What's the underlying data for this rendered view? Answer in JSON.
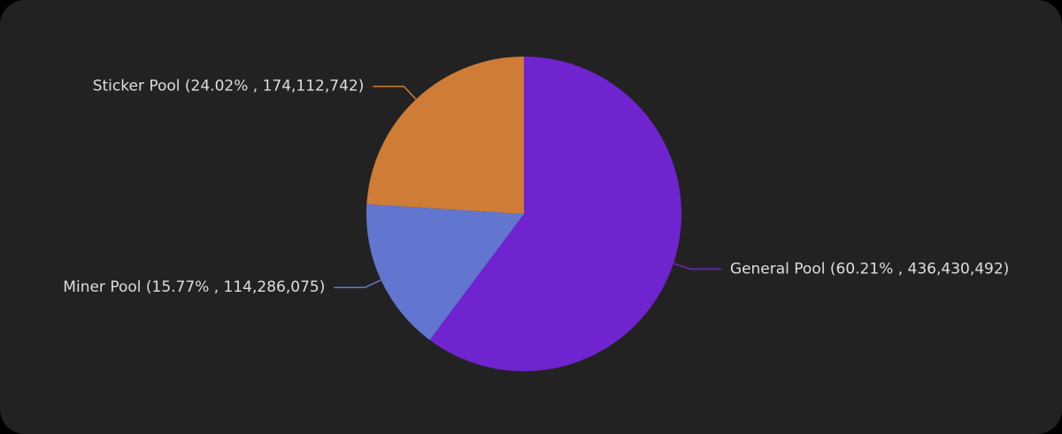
{
  "chart_data": {
    "type": "pie",
    "values": [
      60.21,
      15.77,
      24.02
    ],
    "value_labels": [
      "General Pool (60.21% , 436,430,492)",
      "Miner Pool (15.77% , 114,286,075)",
      "Sticker Pool (24.02% , 174,112,742)"
    ],
    "colors": [
      "#7024d0",
      "#6276d0",
      "#cf7c36"
    ]
  }
}
